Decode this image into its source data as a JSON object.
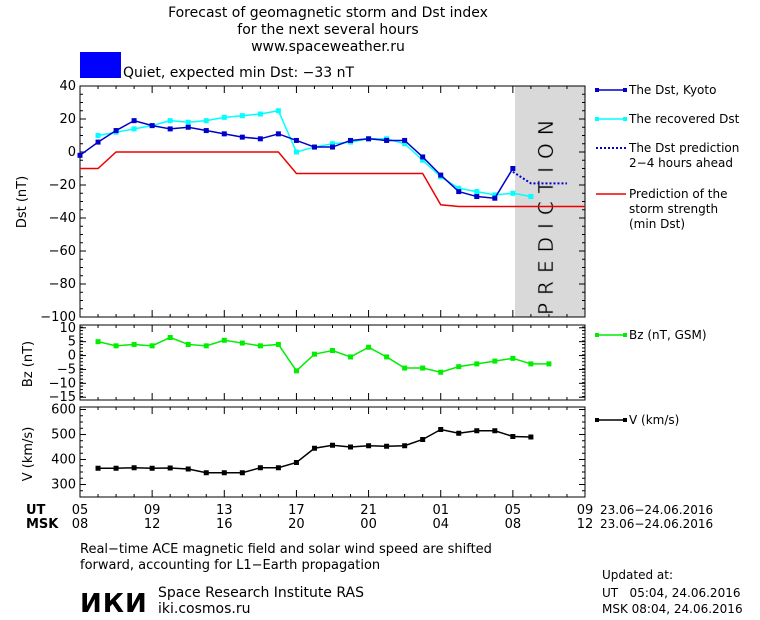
{
  "header": {
    "title_lines": [
      "Forecast of geomagnetic storm and Dst index",
      "for the next several hours",
      "www.spaceweather.ru"
    ],
    "status_text": "Quiet, expected min Dst: −33 nT",
    "status_color": "#0000ff"
  },
  "colors": {
    "dst_kyoto": "#0000cc",
    "dst_recovered": "#00ffff",
    "dst_prediction": "#0000cc",
    "storm_strength": "#ee0000",
    "bz": "#00ee00",
    "v": "#000000",
    "prediction_band": "#d9d9d9"
  },
  "prediction_label": "PREDICTION",
  "time_axis": {
    "ut_label": "UT",
    "msk_label": "MSK",
    "ut_ticks": [
      "05",
      "09",
      "13",
      "17",
      "21",
      "01",
      "05",
      "09"
    ],
    "msk_ticks": [
      "08",
      "12",
      "16",
      "20",
      "00",
      "04",
      "08",
      "12"
    ],
    "ut_date_range": "23.06−24.06.2016",
    "msk_date_range": "23.06−24.06.2016"
  },
  "chart_data": [
    {
      "type": "line",
      "ylabel": "Dst (nT)",
      "xlim": [
        5,
        33
      ],
      "ylim": [
        -100,
        40
      ],
      "yticks": [
        "40",
        "20",
        "0",
        "−20",
        "−40",
        "−60",
        "−80",
        "−100"
      ],
      "prediction_start_x": 29,
      "series": [
        {
          "name": "The Dst, Kyoto",
          "x": [
            5,
            6,
            7,
            8,
            9,
            10,
            11,
            12,
            13,
            14,
            15,
            16,
            17,
            18,
            19,
            20,
            21,
            22,
            23,
            24,
            25,
            26,
            27,
            28,
            29
          ],
          "y": [
            -2,
            6,
            13,
            19,
            16,
            14,
            15,
            13,
            11,
            9,
            8,
            11,
            7,
            3,
            3,
            7,
            8,
            7,
            7,
            -3,
            -14,
            -24,
            -27,
            -28,
            -10
          ]
        },
        {
          "name": "The recovered Dst",
          "x": [
            6,
            7,
            8,
            9,
            10,
            11,
            12,
            13,
            14,
            15,
            16,
            17,
            18,
            19,
            20,
            21,
            22,
            23,
            24,
            25,
            26,
            27,
            28,
            29,
            30
          ],
          "y": [
            10,
            12,
            14,
            16,
            19,
            18,
            19,
            21,
            22,
            23,
            25,
            0,
            3,
            5,
            6,
            8,
            8,
            5,
            -5,
            -15,
            -22,
            -24,
            -26,
            -25,
            -27
          ]
        },
        {
          "name": "The Dst prediction\n2−4 hours ahead",
          "x": [
            29,
            30,
            31,
            32
          ],
          "y": [
            -12,
            -19,
            -19,
            -19
          ]
        },
        {
          "name": "Prediction of the\nstorm strength\n(min Dst)",
          "x": [
            5,
            6,
            7,
            16,
            17,
            23,
            24,
            25,
            26,
            33
          ],
          "y": [
            -10,
            -10,
            0,
            0,
            -13,
            -13,
            -13,
            -32,
            -33,
            -33
          ]
        }
      ]
    },
    {
      "type": "line",
      "ylabel": "Bz (nT)",
      "xlim": [
        5,
        33
      ],
      "ylim": [
        -16,
        11
      ],
      "yticks": [
        "10",
        "5",
        "0",
        "−5",
        "−10",
        "−15"
      ],
      "series": [
        {
          "name": "Bz (nT, GSM)",
          "x": [
            6,
            7,
            8,
            9,
            10,
            11,
            12,
            13,
            14,
            15,
            16,
            17,
            18,
            19,
            20,
            21,
            22,
            23,
            24,
            25,
            26,
            27,
            28,
            29,
            30,
            31
          ],
          "y": [
            5,
            3.5,
            4,
            3.5,
            6.5,
            4,
            3.5,
            5.5,
            4.5,
            3.5,
            4,
            -5.5,
            0.5,
            1.8,
            -0.5,
            3,
            -0.5,
            -4.5,
            -4.5,
            -6,
            -4,
            -3,
            -2,
            -1,
            -3,
            -3
          ]
        }
      ]
    },
    {
      "type": "line",
      "ylabel": "V (km/s)",
      "xlim": [
        5,
        33
      ],
      "ylim": [
        250,
        610
      ],
      "yticks": [
        "600",
        "500",
        "400",
        "300"
      ],
      "series": [
        {
          "name": "V (km/s)",
          "x": [
            6,
            7,
            8,
            9,
            10,
            11,
            12,
            13,
            14,
            15,
            16,
            17,
            18,
            19,
            20,
            21,
            22,
            23,
            24,
            25,
            26,
            27,
            28,
            29,
            30
          ],
          "y": [
            365,
            365,
            367,
            365,
            366,
            362,
            347,
            347,
            347,
            367,
            367,
            388,
            445,
            457,
            450,
            455,
            453,
            455,
            480,
            520,
            505,
            515,
            515,
            492,
            490
          ]
        }
      ]
    }
  ],
  "footer": {
    "note_lines": [
      "Real−time ACE magnetic field and solar wind speed are shifted",
      "forward, accounting for L1−Earth propagation"
    ],
    "logo_text": "ИКИ",
    "institute": "Space Research Institute RAS",
    "site": "iki.cosmos.ru",
    "updated_label": "Updated at:",
    "updated_ut": "UT   05:04, 24.06.2016",
    "updated_msk": "MSK 08:04, 24.06.2016"
  }
}
